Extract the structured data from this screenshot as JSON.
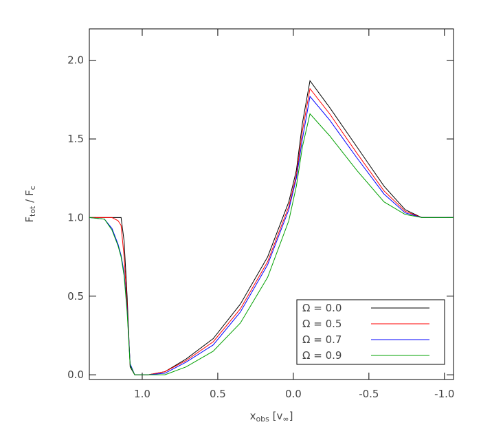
{
  "chart_data": {
    "type": "line",
    "xlabel": [
      {
        "text": "x"
      },
      {
        "text": "obs",
        "sub": true
      },
      {
        "text": " [v"
      },
      {
        "text": "∞",
        "sub": true
      },
      {
        "text": "]"
      }
    ],
    "ylabel": [
      {
        "text": "F"
      },
      {
        "text": "tot",
        "sub": true
      },
      {
        "text": " / F"
      },
      {
        "text": "c",
        "sub": true
      }
    ],
    "x": [
      1.35,
      1.25,
      1.2,
      1.16,
      1.14,
      1.12,
      1.1,
      1.08,
      1.05,
      0.96,
      0.85,
      0.71,
      0.53,
      0.35,
      0.17,
      0.03,
      -0.02,
      -0.06,
      -0.11,
      -0.24,
      -0.42,
      -0.6,
      -0.74,
      -0.85,
      -1.06
    ],
    "series": [
      {
        "name": "Ω = 0.0",
        "color": "#000000",
        "values": [
          1,
          1,
          1,
          1,
          1,
          0.85,
          0.5,
          0.05,
          0,
          0,
          0.02,
          0.1,
          0.23,
          0.45,
          0.75,
          1.1,
          1.3,
          1.6,
          1.87,
          1.7,
          1.45,
          1.2,
          1.05,
          1.0,
          1.0
        ]
      },
      {
        "name": "Ω = 0.5",
        "color": "#ff0000",
        "values": [
          1,
          1,
          1,
          0.98,
          0.95,
          0.75,
          0.45,
          0.06,
          0,
          0,
          0.02,
          0.09,
          0.21,
          0.42,
          0.72,
          1.07,
          1.27,
          1.55,
          1.82,
          1.66,
          1.41,
          1.17,
          1.04,
          1.0,
          1.0
        ]
      },
      {
        "name": "Ω = 0.7",
        "color": "#0000ff",
        "values": [
          1,
          0.99,
          0.93,
          0.83,
          0.76,
          0.65,
          0.42,
          0.07,
          0,
          0,
          0.01,
          0.08,
          0.19,
          0.4,
          0.7,
          1.05,
          1.25,
          1.5,
          1.77,
          1.62,
          1.38,
          1.15,
          1.03,
          1.0,
          1.0
        ]
      },
      {
        "name": "Ω = 0.9",
        "color": "#00a000",
        "values": [
          1,
          0.99,
          0.92,
          0.82,
          0.75,
          0.63,
          0.4,
          0.06,
          0,
          0,
          0,
          0.05,
          0.15,
          0.33,
          0.62,
          0.98,
          1.2,
          1.45,
          1.66,
          1.52,
          1.3,
          1.1,
          1.02,
          1.0,
          1.0
        ]
      }
    ],
    "xlim": [
      1.35,
      -1.06
    ],
    "xticks": [
      {
        "value": 1,
        "label": "1.0"
      },
      0.5,
      {
        "value": 0,
        "label": "0.0"
      },
      -0.5,
      {
        "value": -1,
        "label": "-1.0"
      }
    ],
    "ylim": [
      -0.03,
      2.2
    ],
    "yticks": [
      {
        "value": 0,
        "label": "0.0"
      },
      0.5,
      {
        "value": 1,
        "label": "1.0"
      },
      1.5,
      {
        "value": 2,
        "label": "2.0"
      }
    ],
    "legend": "lower right"
  }
}
